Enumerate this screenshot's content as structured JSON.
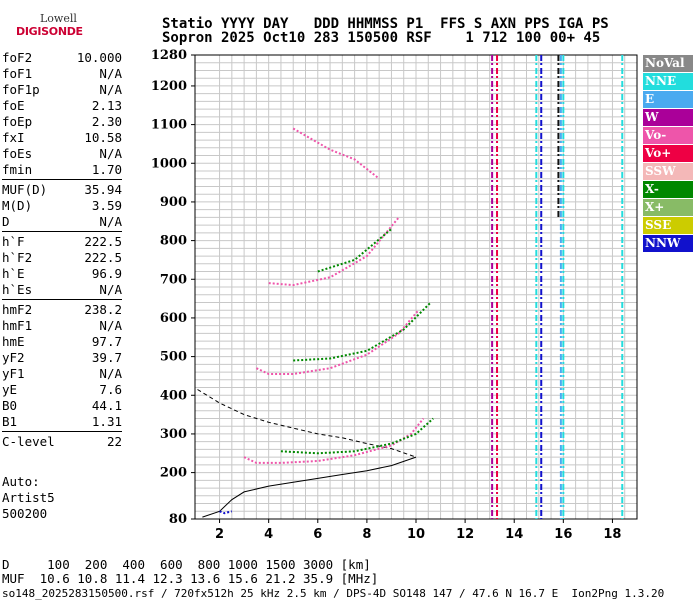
{
  "logo": {
    "line1": "Lowell",
    "line2": "DIGISONDE"
  },
  "header": {
    "line1": "Statio YYYY DAY   DDD HHMMSS P1  FFS S AXN PPS IGA PS",
    "line2": "Sopron 2025 Oct10 283 150500 RSF    1 712 100 00+ 45"
  },
  "params_group1": [
    {
      "k": "foF2",
      "v": "10.000"
    },
    {
      "k": "foF1",
      "v": "N/A"
    },
    {
      "k": "foF1p",
      "v": "N/A"
    },
    {
      "k": "foE",
      "v": "2.13"
    },
    {
      "k": "foEp",
      "v": "2.30"
    },
    {
      "k": "fxI",
      "v": "10.58"
    },
    {
      "k": "foEs",
      "v": "N/A"
    },
    {
      "k": "fmin",
      "v": "1.70"
    }
  ],
  "params_group2": [
    {
      "k": "MUF(D)",
      "v": "35.94"
    },
    {
      "k": "M(D)",
      "v": "3.59"
    },
    {
      "k": "D",
      "v": "N/A"
    }
  ],
  "params_group3": [
    {
      "k": "h`F",
      "v": "222.5"
    },
    {
      "k": "h`F2",
      "v": "222.5"
    },
    {
      "k": "h`E",
      "v": "96.9"
    },
    {
      "k": "h`Es",
      "v": "N/A"
    }
  ],
  "params_group4": [
    {
      "k": "hmF2",
      "v": "238.2"
    },
    {
      "k": "hmF1",
      "v": "N/A"
    },
    {
      "k": "hmE",
      "v": "97.7"
    },
    {
      "k": "yF2",
      "v": "39.7"
    },
    {
      "k": "yF1",
      "v": "N/A"
    },
    {
      "k": "yE",
      "v": "7.6"
    },
    {
      "k": "B0",
      "v": "44.1"
    },
    {
      "k": "B1",
      "v": "1.31"
    }
  ],
  "params_group5": [
    {
      "k": "C-level",
      "v": "22"
    }
  ],
  "auto": {
    "line1": "Auto:",
    "line2": "Artist5",
    "line3": "500200"
  },
  "legend": [
    {
      "label": "NoVal",
      "color": "#888888"
    },
    {
      "label": "NNE",
      "color": "#22dddd"
    },
    {
      "label": "E",
      "color": "#4aaaf0"
    },
    {
      "label": "W",
      "color": "#aa0099"
    },
    {
      "label": "Vo-",
      "color": "#ee55aa"
    },
    {
      "label": "Vo+",
      "color": "#ee0044"
    },
    {
      "label": "SSW",
      "color": "#f4b8b8"
    },
    {
      "label": "X-",
      "color": "#008800"
    },
    {
      "label": "X+",
      "color": "#88bb66"
    },
    {
      "label": "SSE",
      "color": "#cccc00"
    },
    {
      "label": "NNW",
      "color": "#1111cc"
    }
  ],
  "footer": {
    "line1": "D     100  200  400  600  800 1000 1500 3000 [km]",
    "line2": "MUF  10.6 10.8 11.4 12.3 13.6 15.6 21.2 35.9 [MHz]",
    "line3": "so148_2025283150500.rsf / 720fx512h 25 kHz 2.5 km / DPS-4D SO148 147 / 47.6 N 16.7 E  Ion2Png 1.3.20"
  },
  "chart_data": {
    "type": "scatter",
    "xlim": [
      1,
      19
    ],
    "ylim": [
      80,
      1280
    ],
    "x_ticks": [
      "2",
      "4",
      "6",
      "8",
      "10",
      "12",
      "14",
      "16",
      "18"
    ],
    "y_ticks": [
      "80",
      "200",
      "300",
      "400",
      "500",
      "600",
      "700",
      "800",
      "900",
      "1000",
      "1100",
      "1200",
      "1280"
    ],
    "grid": true,
    "echo_traces": [
      {
        "name": "F2 O-trace",
        "color": "#ee55aa",
        "x": [
          3.0,
          3.5,
          4.5,
          6.0,
          7.5,
          9.0,
          9.8,
          10.3
        ],
        "y": [
          240,
          225,
          225,
          230,
          245,
          270,
          300,
          340
        ]
      },
      {
        "name": "F2 X-trace",
        "color": "#008800",
        "x": [
          4.5,
          6.0,
          7.5,
          9.0,
          10.0,
          10.7
        ],
        "y": [
          255,
          250,
          255,
          275,
          300,
          340
        ]
      },
      {
        "name": "E-trace",
        "color": "#1111cc",
        "x": [
          2.0,
          2.2,
          2.5
        ],
        "y": [
          100,
          95,
          100
        ]
      },
      {
        "name": "2F2 O-trace",
        "color": "#ee55aa",
        "x": [
          3.5,
          4.0,
          5.0,
          6.5,
          8.0,
          9.3,
          10.1
        ],
        "y": [
          470,
          455,
          455,
          470,
          505,
          560,
          620
        ]
      },
      {
        "name": "2F2 X-trace",
        "color": "#008800",
        "x": [
          5.0,
          6.5,
          8.0,
          9.5,
          10.6
        ],
        "y": [
          490,
          495,
          515,
          570,
          640
        ]
      },
      {
        "name": "3F2 O-trace",
        "color": "#ee55aa",
        "x": [
          4.0,
          5.0,
          6.5,
          8.0,
          9.3
        ],
        "y": [
          690,
          685,
          705,
          760,
          860
        ]
      },
      {
        "name": "3F2 X-trace",
        "color": "#008800",
        "x": [
          6.0,
          7.5,
          9.0
        ],
        "y": [
          720,
          750,
          830
        ]
      },
      {
        "name": "4F2 O-trace",
        "color": "#ee55aa",
        "x": [
          5.0,
          6.5,
          7.5,
          8.5
        ],
        "y": [
          1090,
          1035,
          1010,
          960
        ]
      }
    ],
    "profile_curves": [
      {
        "name": "profile-solid",
        "x": [
          1.3,
          2.0,
          2.5,
          3.0,
          4.0,
          5.0,
          6.0,
          7.0,
          8.0,
          9.0,
          10.0
        ],
        "y": [
          85,
          100,
          130,
          150,
          165,
          175,
          185,
          195,
          205,
          218,
          240
        ]
      },
      {
        "name": "profile-dashed",
        "x": [
          1.1,
          2.0,
          3.0,
          4.0,
          5.0,
          6.0,
          7.0,
          8.0,
          9.0,
          10.0
        ],
        "y": [
          415,
          380,
          350,
          330,
          315,
          300,
          290,
          275,
          262,
          240
        ]
      }
    ],
    "interference_lines": [
      {
        "x": 13.1,
        "y": [
          80,
          1280
        ],
        "color": "#aa0099"
      },
      {
        "x": 13.3,
        "y": [
          80,
          1280
        ],
        "color": "#ee0044"
      },
      {
        "x": 14.9,
        "y": [
          80,
          1280
        ],
        "color": "#22dddd"
      },
      {
        "x": 15.1,
        "y": [
          80,
          1280
        ],
        "color": "#1111cc"
      },
      {
        "x": 15.8,
        "y": [
          860,
          1280
        ],
        "color": "#111111"
      },
      {
        "x": 15.9,
        "y": [
          80,
          1280
        ],
        "color": "#4aaaf0"
      },
      {
        "x": 16.0,
        "y": [
          80,
          1280
        ],
        "color": "#22dddd"
      },
      {
        "x": 18.4,
        "y": [
          80,
          1280
        ],
        "color": "#22dddd"
      }
    ]
  }
}
